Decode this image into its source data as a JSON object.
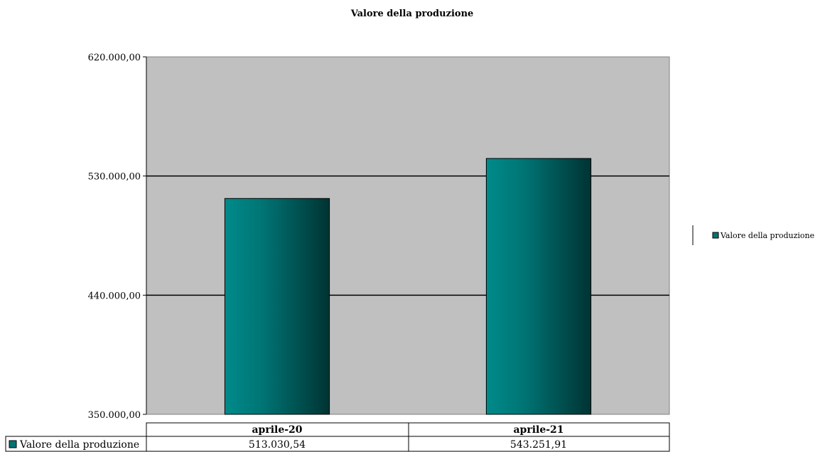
{
  "chart_data": {
    "type": "bar",
    "title": "Valore della produzione",
    "xlabel": "",
    "ylabel": "",
    "categories": [
      "aprile-20",
      "aprile-21"
    ],
    "series": [
      {
        "name": "Valore della produzione",
        "values": [
          513030.54,
          543251.91
        ],
        "value_labels": [
          "513.030,54",
          "543.251,91"
        ],
        "color": "#008080"
      }
    ],
    "ylim": [
      350000,
      620000
    ],
    "yticks": [
      350000,
      440000,
      530000,
      620000
    ],
    "ytick_labels": [
      "350.000,00",
      "440.000,00",
      "530.000,00",
      "620.000,00"
    ],
    "grid": true,
    "legend_position": "right",
    "data_table": true,
    "plot_background": "#c0c0c0"
  }
}
